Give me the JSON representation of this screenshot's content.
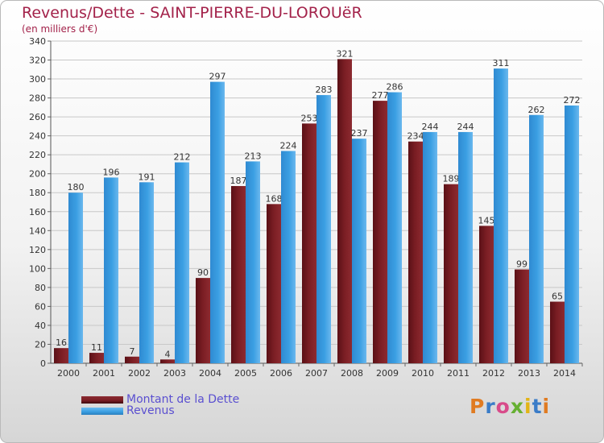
{
  "header": {
    "title": "Revenus/Dette - SAINT-PIERRE-DU-LOROUëR",
    "subtitle": "(en milliers d'€)"
  },
  "legend": {
    "debt_label": "Montant de la Dette",
    "revenue_label": "Revenus"
  },
  "brand": {
    "logo_text": "Proxiti"
  },
  "colors": {
    "debt": "#7b1e24",
    "revenue": "#3b9fe3",
    "grid": "#c8c8c8",
    "axis_text": "#333333",
    "title": "#a3224a",
    "legend_text": "#5a4fd0"
  },
  "chart_data": {
    "type": "bar",
    "title": "Revenus/Dette - SAINT-PIERRE-DU-LOROUëR",
    "subtitle": "(en milliers d'€)",
    "xlabel": "",
    "ylabel": "",
    "ylim": [
      0,
      340
    ],
    "ytick_step": 20,
    "grid": true,
    "legend_position": "bottom-left",
    "categories": [
      "2000",
      "2001",
      "2002",
      "2003",
      "2004",
      "2005",
      "2006",
      "2007",
      "2008",
      "2009",
      "2010",
      "2011",
      "2012",
      "2013",
      "2014"
    ],
    "series": [
      {
        "name": "Montant de la Dette",
        "values": [
          16,
          11,
          7,
          4,
          90,
          187,
          168,
          253,
          321,
          277,
          234,
          189,
          145,
          99,
          65
        ]
      },
      {
        "name": "Revenus",
        "values": [
          180,
          196,
          191,
          212,
          297,
          213,
          224,
          283,
          237,
          286,
          244,
          244,
          311,
          262,
          272
        ]
      }
    ]
  }
}
